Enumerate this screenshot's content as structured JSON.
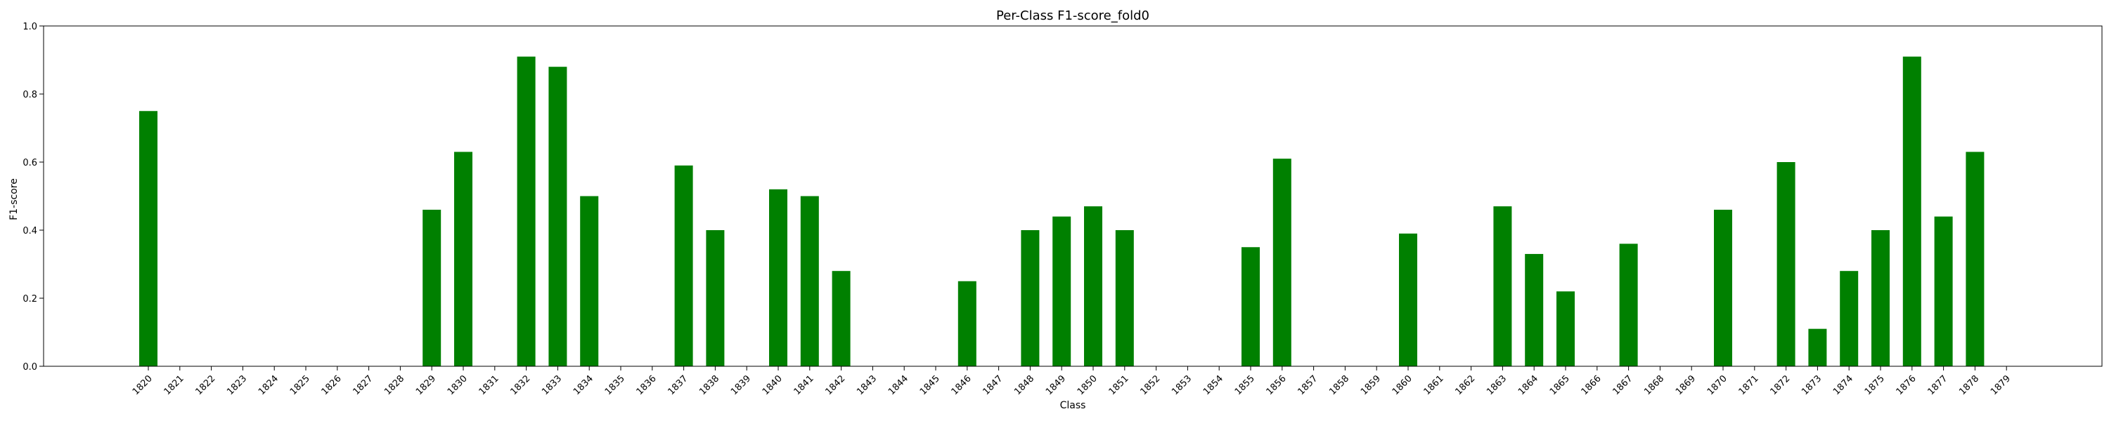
{
  "chart_data": {
    "type": "bar",
    "title": "Per-Class F1-score_fold0",
    "xlabel": "Class",
    "ylabel": "F1-score",
    "ylim": [
      0,
      1
    ],
    "yticks": [
      "0.0",
      "0.2",
      "0.4",
      "0.6",
      "0.8",
      "1.0"
    ],
    "categories": [
      "1820",
      "1821",
      "1822",
      "1823",
      "1824",
      "1825",
      "1826",
      "1827",
      "1828",
      "1829",
      "1830",
      "1831",
      "1832",
      "1833",
      "1834",
      "1835",
      "1836",
      "1837",
      "1838",
      "1839",
      "1840",
      "1841",
      "1842",
      "1843",
      "1844",
      "1845",
      "1846",
      "1847",
      "1848",
      "1849",
      "1850",
      "1851",
      "1852",
      "1853",
      "1854",
      "1855",
      "1856",
      "1857",
      "1858",
      "1859",
      "1860",
      "1861",
      "1862",
      "1863",
      "1864",
      "1865",
      "1866",
      "1867",
      "1868",
      "1869",
      "1870",
      "1871",
      "1872",
      "1873",
      "1874",
      "1875",
      "1876",
      "1877",
      "1878",
      "1879"
    ],
    "values": [
      0.75,
      0,
      0,
      0,
      0,
      0,
      0,
      0,
      0,
      0.46,
      0.63,
      0,
      0.91,
      0.88,
      0.5,
      0,
      0,
      0.59,
      0.4,
      0,
      0.52,
      0.5,
      0.28,
      0,
      0,
      0,
      0.25,
      0,
      0.4,
      0.44,
      0.47,
      0.4,
      0,
      0,
      0,
      0.35,
      0.61,
      0,
      0,
      0,
      0.39,
      0,
      0,
      0.47,
      0.33,
      0.22,
      0,
      0.36,
      0,
      0,
      0.46,
      0,
      0.6,
      0.11,
      0.28,
      0.4,
      0.91,
      0.44,
      0.63,
      0
    ],
    "bar_color": "#008000",
    "grid": false,
    "legend": "none"
  }
}
